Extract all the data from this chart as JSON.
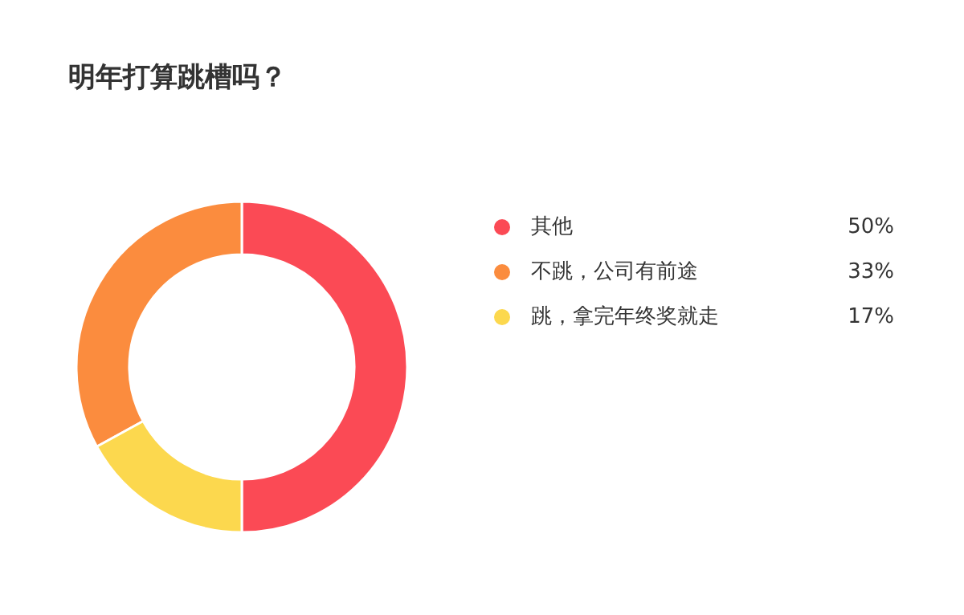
{
  "chart_data": {
    "type": "donut",
    "title": "明年打算跳槽吗？",
    "categories": [
      "其他",
      "不跳，公司有前途",
      "跳，拿完年终奖就走"
    ],
    "values": [
      50,
      33,
      17
    ],
    "colors": [
      "#fb4a55",
      "#fb8c3e",
      "#fcd84e"
    ],
    "value_labels": [
      "50%",
      "33%",
      "17%"
    ],
    "legend": "right"
  }
}
